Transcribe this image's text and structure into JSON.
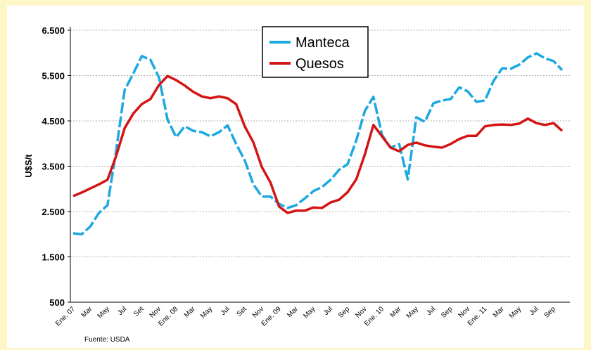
{
  "chart_data": {
    "type": "line",
    "y_label": "U$S/t",
    "source": "Fuente: USDA",
    "categories": [
      "Ene. 07",
      null,
      "Mar",
      null,
      "May",
      null,
      "Jul",
      null,
      "Set",
      null,
      "Nov",
      null,
      "Ene. 08",
      null,
      "Mar",
      null,
      "May",
      null,
      "Jul",
      null,
      "Set",
      null,
      "Nov",
      null,
      "Ene. 09",
      null,
      "Mar",
      null,
      "May",
      null,
      "Jul",
      null,
      "Sep",
      null,
      "Nov",
      null,
      "Ene. 10",
      null,
      "Mar",
      null,
      "May",
      null,
      "Jul",
      null,
      "Sep",
      null,
      "Nov",
      null,
      "Ene. 11",
      null,
      "Mar",
      null,
      "May",
      null,
      "Jul",
      null,
      "Sep",
      null
    ],
    "series": [
      {
        "name": "Manteca",
        "color": "#1ca8e0",
        "dashed": true,
        "values": [
          2020,
          2000,
          2170,
          2470,
          2640,
          3830,
          5180,
          5540,
          5930,
          5850,
          5460,
          4530,
          4140,
          4380,
          4280,
          4250,
          4160,
          4250,
          4400,
          3990,
          3630,
          3100,
          2830,
          2830,
          2670,
          2580,
          2640,
          2790,
          2950,
          3040,
          3200,
          3420,
          3550,
          4070,
          4720,
          5030,
          4190,
          3910,
          3990,
          3210,
          4580,
          4480,
          4890,
          4950,
          4980,
          5240,
          5150,
          4920,
          4950,
          5380,
          5660,
          5650,
          5740,
          5900,
          5990,
          5880,
          5820,
          5620
        ]
      },
      {
        "name": "Quesos",
        "color": "#d41414",
        "dashed": false,
        "values": [
          2840,
          2920,
          3010,
          3100,
          3200,
          3720,
          4340,
          4660,
          4870,
          4980,
          5290,
          5490,
          5400,
          5280,
          5140,
          5040,
          5000,
          5040,
          5000,
          4870,
          4380,
          4030,
          3480,
          3140,
          2610,
          2470,
          2520,
          2520,
          2590,
          2580,
          2700,
          2760,
          2930,
          3210,
          3760,
          4410,
          4160,
          3910,
          3830,
          3970,
          4020,
          3960,
          3930,
          3910,
          3990,
          4100,
          4170,
          4170,
          4380,
          4410,
          4420,
          4410,
          4440,
          4550,
          4450,
          4410,
          4450,
          4280
        ]
      }
    ],
    "ylim": [
      500,
      6500
    ],
    "yticks": [
      500,
      {
        "value": 1500,
        "label": "1.500"
      },
      {
        "value": 2500,
        "label": "2.500"
      },
      {
        "value": 3500,
        "label": "3.500"
      },
      {
        "value": 4500,
        "label": "4.500"
      },
      {
        "value": 5500,
        "label": "5.500"
      },
      {
        "value": 6500,
        "label": "6.500"
      }
    ],
    "grid": true
  }
}
